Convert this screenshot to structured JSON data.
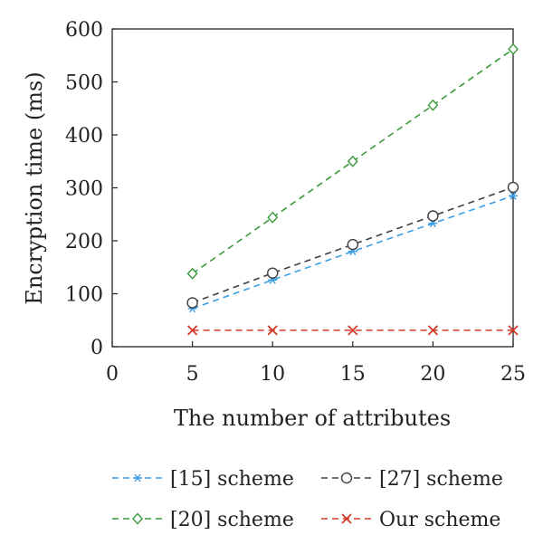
{
  "chart_data": {
    "type": "line",
    "title": "",
    "xlabel": "The number of attributes",
    "ylabel": "Encryption time (ms)",
    "xlim": [
      0,
      25
    ],
    "ylim": [
      0,
      600
    ],
    "xticks": [
      0,
      5,
      10,
      15,
      20,
      25
    ],
    "yticks": [
      0,
      100,
      200,
      300,
      400,
      500,
      600
    ],
    "grid": false,
    "legend_position": "bottom",
    "x": [
      5,
      10,
      15,
      20,
      25
    ],
    "series": [
      {
        "name": "[15] scheme",
        "color": "#3a9ee4",
        "marker": "asterisk",
        "values": [
          72,
          126,
          180,
          233,
          285
        ]
      },
      {
        "name": "[27] scheme",
        "color": "#404040",
        "marker": "circle",
        "values": [
          83,
          139,
          193,
          247,
          301
        ]
      },
      {
        "name": "[20] scheme",
        "color": "#3a9a3a",
        "marker": "diamond",
        "values": [
          138,
          244,
          350,
          456,
          562
        ]
      },
      {
        "name": "Our scheme",
        "color": "#d23a2a",
        "marker": "x",
        "values": [
          31,
          31,
          31,
          31,
          31
        ]
      }
    ]
  }
}
